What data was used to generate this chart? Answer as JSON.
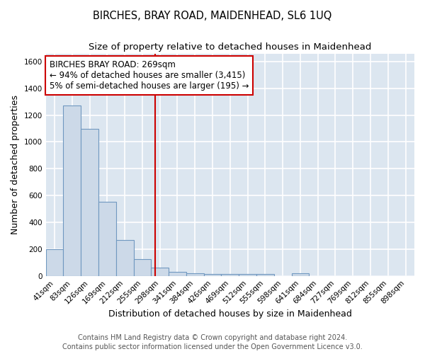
{
  "title": "BIRCHES, BRAY ROAD, MAIDENHEAD, SL6 1UQ",
  "subtitle": "Size of property relative to detached houses in Maidenhead",
  "xlabel": "Distribution of detached houses by size in Maidenhead",
  "ylabel": "Number of detached properties",
  "footer": "Contains HM Land Registry data © Crown copyright and database right 2024.\nContains public sector information licensed under the Open Government Licence v3.0.",
  "bin_labels": [
    "41sqm",
    "83sqm",
    "126sqm",
    "169sqm",
    "212sqm",
    "255sqm",
    "298sqm",
    "341sqm",
    "384sqm",
    "426sqm",
    "469sqm",
    "512sqm",
    "555sqm",
    "598sqm",
    "641sqm",
    "684sqm",
    "727sqm",
    "769sqm",
    "812sqm",
    "855sqm",
    "898sqm"
  ],
  "bar_values": [
    200,
    1270,
    1095,
    555,
    270,
    125,
    62,
    32,
    20,
    13,
    13,
    13,
    13,
    0,
    20,
    0,
    0,
    0,
    0,
    0,
    0
  ],
  "bar_color": "#ccd9e8",
  "bar_edge_color": "#7098c0",
  "background_color": "#dce6f0",
  "grid_color": "#ffffff",
  "vline_x": 5.72,
  "vline_color": "#cc0000",
  "annotation_text": "BIRCHES BRAY ROAD: 269sqm\n← 94% of detached houses are smaller (3,415)\n5% of semi-detached houses are larger (195) →",
  "annotation_box_color": "#ffffff",
  "annotation_border_color": "#cc0000",
  "ylim": [
    0,
    1660
  ],
  "title_fontsize": 10.5,
  "subtitle_fontsize": 9.5,
  "axis_label_fontsize": 9,
  "tick_fontsize": 7.5,
  "footer_fontsize": 7,
  "annot_fontsize": 8.5
}
